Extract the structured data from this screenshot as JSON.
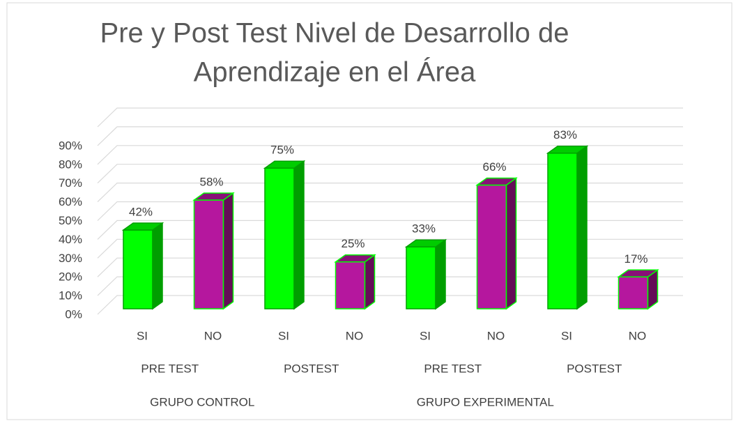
{
  "chart_data": {
    "type": "bar3d",
    "title": [
      "Pre y Post Test  Nivel de Desarrollo de",
      "Aprendizaje en el Área"
    ],
    "categories": [
      "SI",
      "NO",
      "SI",
      "NO",
      "SI",
      "NO",
      "SI",
      "NO"
    ],
    "groups": [
      "PRE TEST",
      "POSTEST",
      "PRE TEST",
      "POSTEST"
    ],
    "supergroups": [
      "GRUPO CONTROL",
      "GRUPO EXPERIMENTAL"
    ],
    "values": [
      42,
      58,
      75,
      25,
      33,
      66,
      83,
      17
    ],
    "value_labels": [
      "42%",
      "58%",
      "75%",
      "25%",
      "33%",
      "66%",
      "83%",
      "17%"
    ],
    "colors": [
      "#00ff00",
      "#b5179e",
      "#00ff00",
      "#b5179e",
      "#00ff00",
      "#b5179e",
      "#00ff00",
      "#b5179e"
    ],
    "ylim": [
      0,
      100
    ],
    "yticks": [
      {
        "value": 0,
        "label": "0%"
      },
      {
        "value": 10,
        "label": "10%"
      },
      {
        "value": 20,
        "label": "20%"
      },
      {
        "value": 30,
        "label": "30%"
      },
      {
        "value": 40,
        "label": "40%"
      },
      {
        "value": 50,
        "label": "50%"
      },
      {
        "value": 60,
        "label": "60%"
      },
      {
        "value": 70,
        "label": "70%"
      },
      {
        "value": 80,
        "label": "80%"
      },
      {
        "value": 90,
        "label": "90%"
      }
    ],
    "grid": true
  }
}
